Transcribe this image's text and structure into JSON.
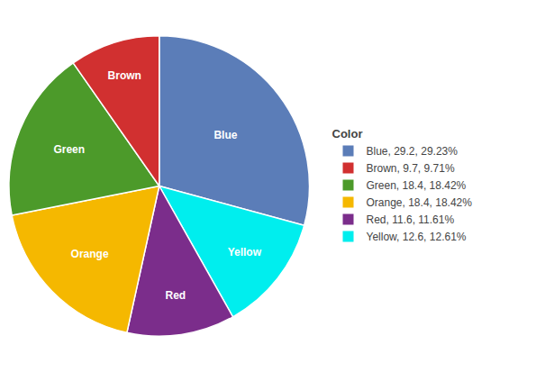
{
  "chart_data": {
    "type": "pie",
    "categories": [
      "Blue",
      "Yellow",
      "Red",
      "Orange",
      "Green",
      "Brown"
    ],
    "values": [
      29.2,
      12.6,
      11.6,
      18.4,
      18.4,
      9.7
    ],
    "colors": [
      "#5B7DB8",
      "#00EEEE",
      "#7B2D8B",
      "#F5B800",
      "#4C9A2A",
      "#D13030"
    ],
    "legend": "right",
    "legend_title": "Color",
    "legend_labels": [
      "Blue, 29.2, 29.23%",
      "Brown, 9.7, 9.71%",
      "Green, 18.4, 18.42%",
      "Orange, 18.4, 18.42%",
      "Red, 11.6, 11.61%",
      "Yellow, 12.6, 12.61%"
    ],
    "legend_colors": [
      "#5B7DB8",
      "#D13030",
      "#4C9A2A",
      "#F5B800",
      "#7B2D8B",
      "#00EEEE"
    ]
  }
}
